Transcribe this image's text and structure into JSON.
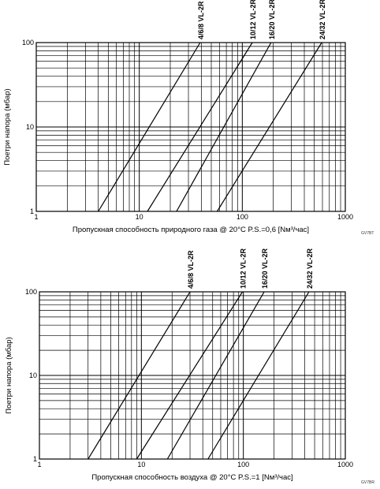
{
  "chart_data": [
    {
      "type": "line",
      "log_x": true,
      "log_y": true,
      "xlim": [
        1,
        1000
      ],
      "ylim": [
        1,
        100
      ],
      "grid": true,
      "xlabel": "Пропускная способность природного газа @ 20°C P.S.=0,6 [Nм³/час]",
      "ylabel": "Поетри напора (мбар)",
      "code": "GV7BT",
      "x_ticks": [
        "1",
        "10",
        "100",
        "1000"
      ],
      "y_ticks": [
        "1",
        "10",
        "100"
      ],
      "series": [
        {
          "name": "4/6/8 VL-2R",
          "x": [
            4,
            39
          ],
          "y": [
            1,
            100
          ]
        },
        {
          "name": "10/12 VL-2R",
          "x": [
            12,
            125
          ],
          "y": [
            1,
            100
          ]
        },
        {
          "name": "16/20 VL-2R",
          "x": [
            23,
            190
          ],
          "y": [
            1,
            100
          ]
        },
        {
          "name": "24/32 VL-2R",
          "x": [
            57,
            590
          ],
          "y": [
            1,
            100
          ]
        }
      ]
    },
    {
      "type": "line",
      "log_x": true,
      "log_y": true,
      "xlim": [
        1,
        1000
      ],
      "ylim": [
        1,
        100
      ],
      "grid": true,
      "xlabel": "Пропускная способность воздуха @ 20°C P.S.=1 [Nм³/час]",
      "ylabel": "Поетри напора (мбар)",
      "code": "GV7BR",
      "x_ticks": [
        "1",
        "10",
        "100",
        "1000"
      ],
      "y_ticks": [
        "1",
        "10",
        "100"
      ],
      "series": [
        {
          "name": "4/6/8 VL-2R",
          "x": [
            3,
            30
          ],
          "y": [
            1,
            100
          ]
        },
        {
          "name": "10/12 VL-2R",
          "x": [
            9,
            98
          ],
          "y": [
            1,
            100
          ]
        },
        {
          "name": "16/20 VL-2R",
          "x": [
            18,
            160
          ],
          "y": [
            1,
            100
          ]
        },
        {
          "name": "24/32 VL-2R",
          "x": [
            45,
            440
          ],
          "y": [
            1,
            100
          ]
        }
      ]
    }
  ]
}
